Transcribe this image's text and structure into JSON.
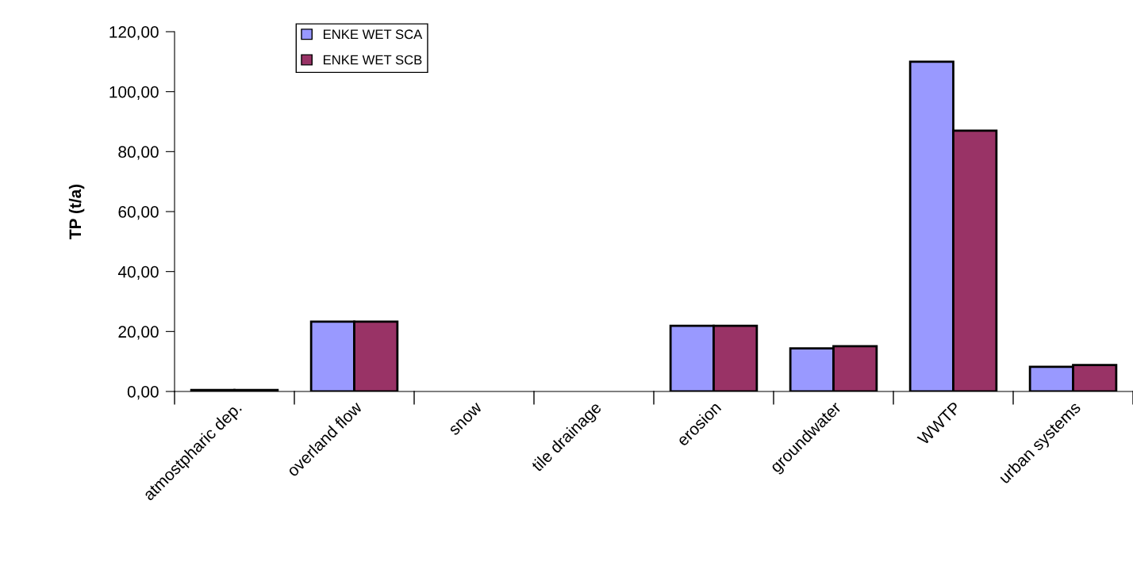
{
  "chart_data": {
    "type": "bar",
    "ylabel": "TP (t/a)",
    "categories": [
      "atmostpharic dep.",
      "overland flow",
      "snow",
      "tile drainage",
      "erosion",
      "groundwater",
      "WWTP",
      "urban systems"
    ],
    "series": [
      {
        "name": "ENKE WET SCA",
        "color": "#9999ff",
        "values": [
          0.5,
          23.3,
          0,
          0,
          21.9,
          14.4,
          110,
          8.2
        ]
      },
      {
        "name": "ENKE WET SCB",
        "color": "#993366",
        "values": [
          0.5,
          23.3,
          0,
          0,
          21.9,
          15.1,
          87,
          8.8
        ]
      }
    ],
    "ylim": [
      0,
      120
    ],
    "yticks": [
      {
        "value": 0,
        "label": "0,00"
      },
      {
        "value": 20,
        "label": "20,00"
      },
      {
        "value": 40,
        "label": "40,00"
      },
      {
        "value": 60,
        "label": "60,00"
      },
      {
        "value": 80,
        "label": "80,00"
      },
      {
        "value": 100,
        "label": "100,00"
      },
      {
        "value": 120,
        "label": "120,00"
      }
    ],
    "grid": false,
    "legend": "top left"
  }
}
